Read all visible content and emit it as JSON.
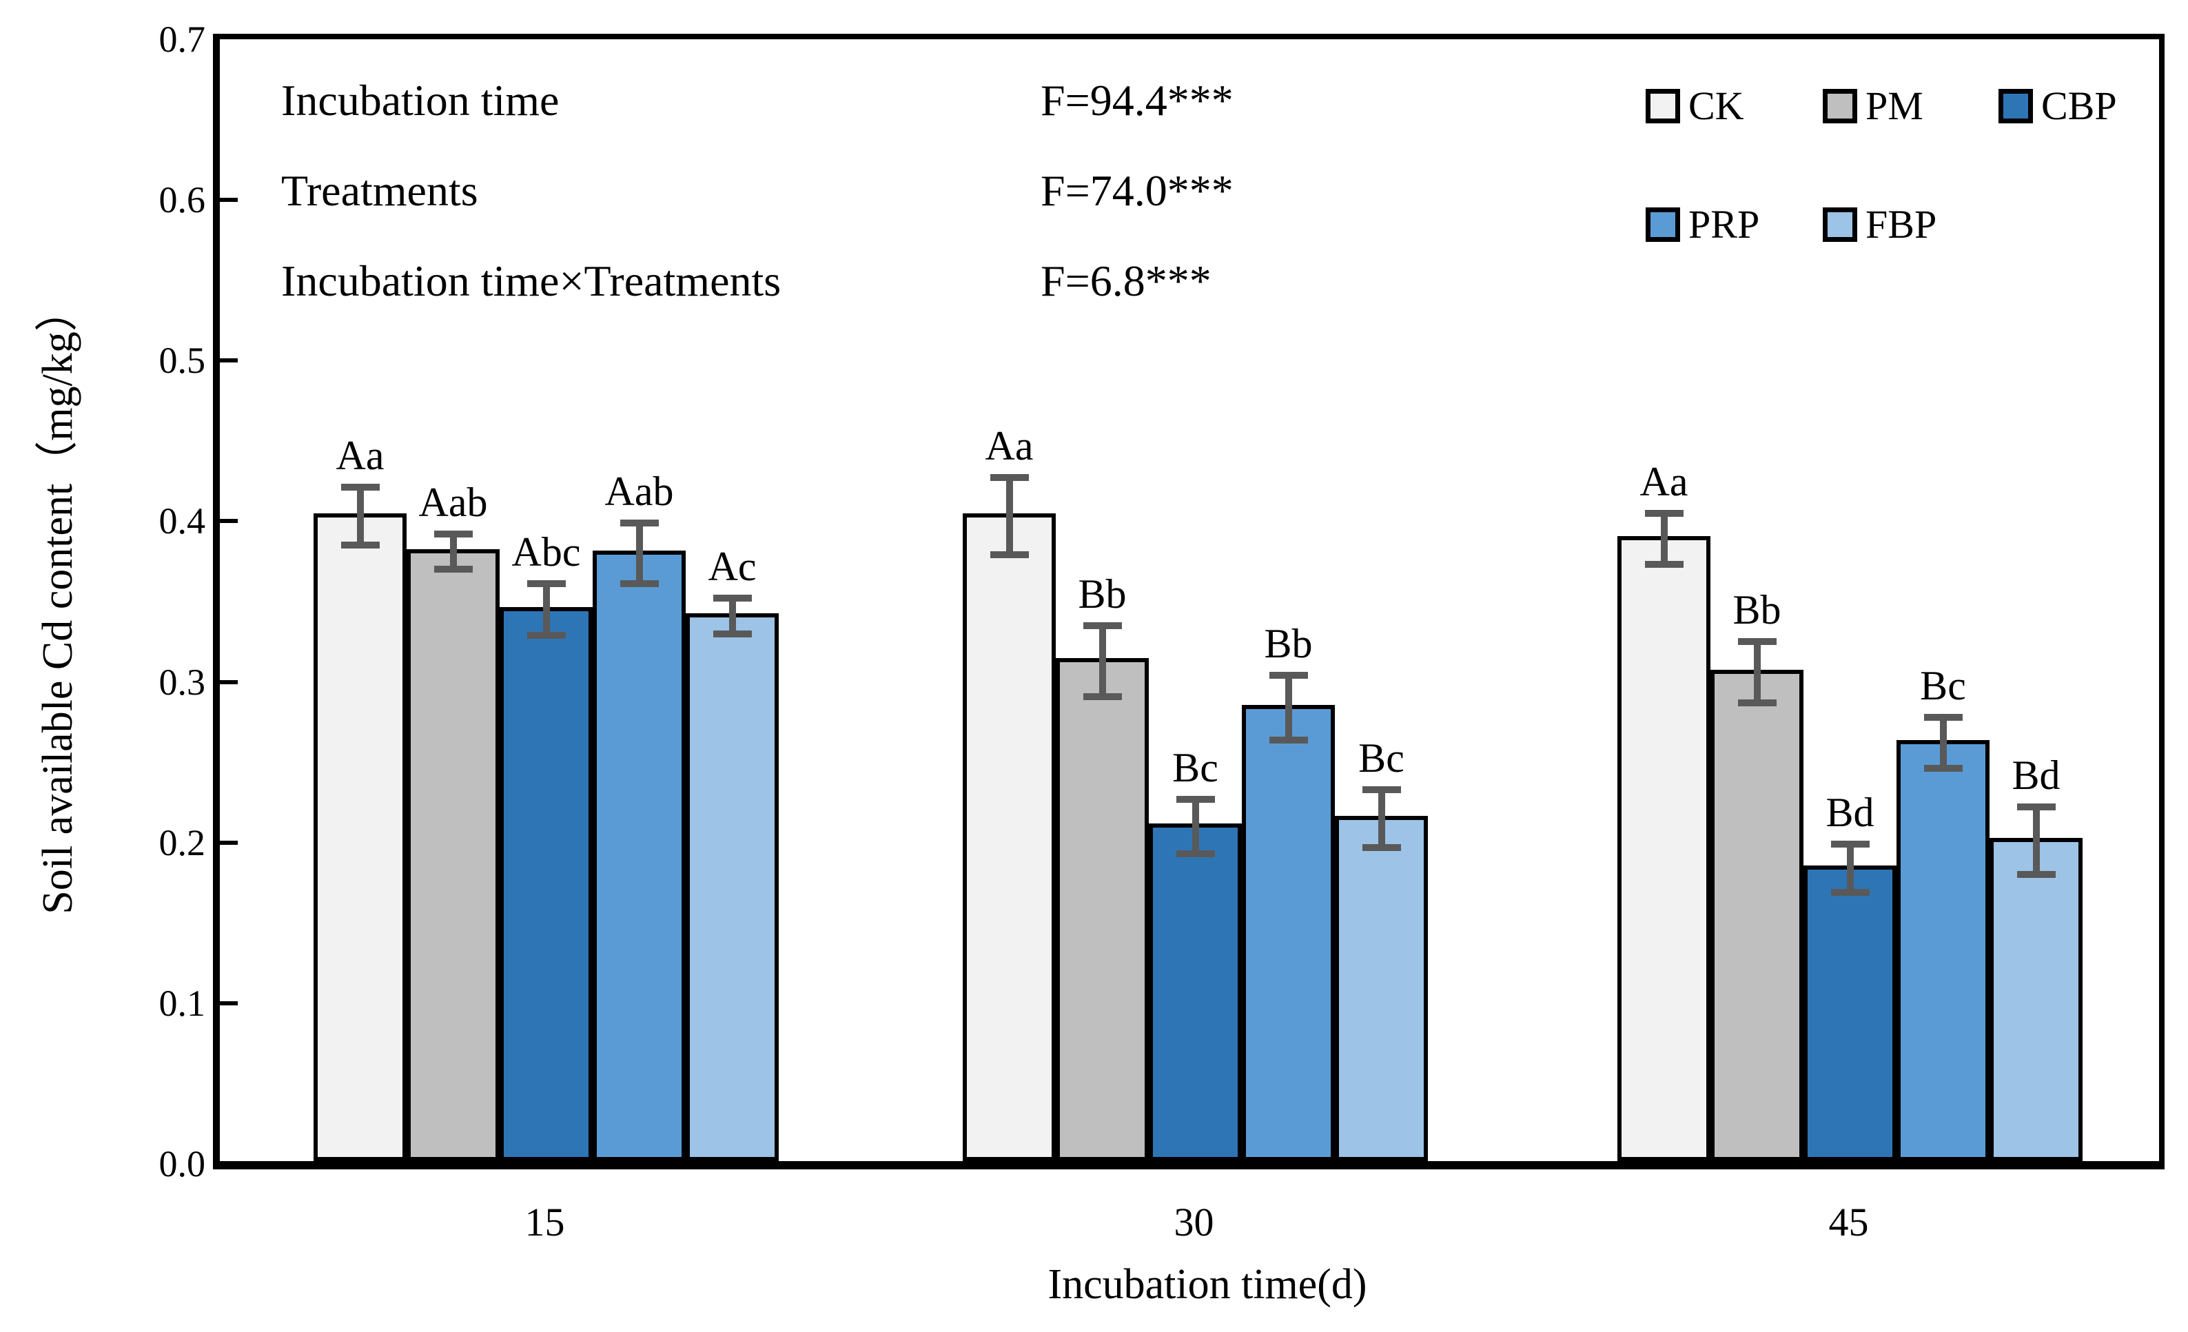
{
  "chart_data": {
    "type": "bar",
    "title": "",
    "xlabel": "Incubation time(d)",
    "ylabel": "Soil available Cd content（mg/kg）",
    "ylim": [
      0,
      0.7
    ],
    "ytick_step": 0.1,
    "grid": false,
    "legend_position": "top-right-inside",
    "error_bar_color": "#595959",
    "bar_border_color": "#000000",
    "categories": [
      "15",
      "30",
      "45"
    ],
    "series": [
      {
        "name": "CK",
        "color": "#F2F2F2",
        "values": [
          0.403,
          0.403,
          0.389
        ],
        "errors": [
          0.018,
          0.024,
          0.016
        ],
        "sig_labels": [
          "Aa",
          "Aa",
          "Aa"
        ]
      },
      {
        "name": "PM",
        "color": "#BFBFBF",
        "values": [
          0.381,
          0.313,
          0.306
        ],
        "errors": [
          0.011,
          0.022,
          0.019
        ],
        "sig_labels": [
          "Aab",
          "Bb",
          "Bb"
        ]
      },
      {
        "name": "CBP",
        "color": "#2E75B6",
        "values": [
          0.345,
          0.21,
          0.184
        ],
        "errors": [
          0.016,
          0.017,
          0.015
        ],
        "sig_labels": [
          "Abc",
          "Bc",
          "Bd"
        ]
      },
      {
        "name": "PRP",
        "color": "#5B9BD5",
        "values": [
          0.38,
          0.284,
          0.262
        ],
        "errors": [
          0.019,
          0.02,
          0.016
        ],
        "sig_labels": [
          "Aab",
          "Bb",
          "Bc"
        ]
      },
      {
        "name": "FBP",
        "color": "#9DC3E6",
        "values": [
          0.341,
          0.215,
          0.201
        ],
        "errors": [
          0.011,
          0.018,
          0.021
        ],
        "sig_labels": [
          "Ac",
          "Bc",
          "Bd"
        ]
      }
    ],
    "annotations": [
      {
        "label": "Incubation time",
        "value": "F=94.4***"
      },
      {
        "label": "Treatments",
        "value": "F=74.0***"
      },
      {
        "label": "Incubation time×Treatments",
        "value": "F=6.8***"
      }
    ]
  }
}
